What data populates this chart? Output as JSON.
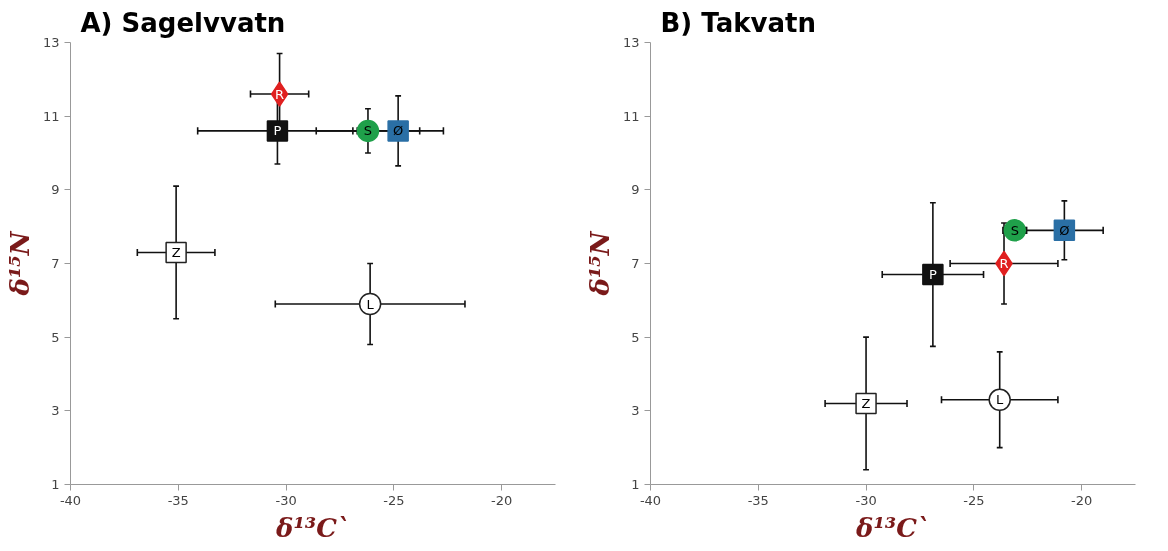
{
  "chart_data": [
    {
      "type": "scatter",
      "title": "A) Sagelvvatn",
      "xlabel": "δ¹³C`",
      "ylabel": "δ¹⁵N",
      "xlim": [
        -40,
        -17.5
      ],
      "ylim": [
        1,
        13
      ],
      "xticks": [
        -40,
        -35,
        -30,
        -25,
        -20
      ],
      "yticks": [
        1,
        3,
        5,
        7,
        9,
        11,
        13
      ],
      "grid": false,
      "legend": false,
      "series": [
        {
          "name": "Z",
          "color": "#ffffff",
          "marker": "square",
          "x": [
            -35.1
          ],
          "values": [
            7.3
          ],
          "xerrors": [
            1.8
          ],
          "errors": [
            1.8
          ]
        },
        {
          "name": "L",
          "color": "#ffffff",
          "marker": "circle",
          "x": [
            -26.1
          ],
          "values": [
            5.9
          ],
          "xerrors": [
            4.4
          ],
          "errors": [
            1.1
          ]
        },
        {
          "name": "P",
          "color": "#111111",
          "marker": "square",
          "x": [
            -30.4
          ],
          "values": [
            10.6
          ],
          "xerrors": [
            3.7
          ],
          "errors": [
            0.9
          ]
        },
        {
          "name": "S",
          "color": "#1fa04a",
          "marker": "circle",
          "x": [
            -26.2
          ],
          "values": [
            10.6
          ],
          "xerrors": [
            2.4
          ],
          "errors": [
            0.6
          ]
        },
        {
          "name": "Ø",
          "color": "#2a6fa5",
          "marker": "square",
          "x": [
            -24.8
          ],
          "values": [
            10.6
          ],
          "xerrors": [
            2.1
          ],
          "errors": [
            0.95
          ]
        },
        {
          "name": "R",
          "color": "#e02020",
          "marker": "diamond",
          "x": [
            -30.3
          ],
          "values": [
            11.6
          ],
          "xerrors": [
            1.35
          ],
          "errors": [
            1.1
          ]
        }
      ]
    },
    {
      "type": "scatter",
      "title": "B) Takvatn",
      "xlabel": "δ¹³C`",
      "ylabel": "δ¹⁵N",
      "xlim": [
        -40,
        -17.5
      ],
      "ylim": [
        1,
        13
      ],
      "xticks": [
        -40,
        -35,
        -30,
        -25,
        -20
      ],
      "yticks": [
        1,
        3,
        5,
        7,
        9,
        11,
        13
      ],
      "grid": false,
      "legend": false,
      "series": [
        {
          "name": "Z",
          "color": "#ffffff",
          "marker": "square",
          "x": [
            -30.0
          ],
          "values": [
            3.2
          ],
          "xerrors": [
            1.9
          ],
          "errors": [
            1.8
          ]
        },
        {
          "name": "L",
          "color": "#ffffff",
          "marker": "circle",
          "x": [
            -23.8
          ],
          "values": [
            3.3
          ],
          "xerrors": [
            2.7
          ],
          "errors": [
            1.3
          ]
        },
        {
          "name": "P",
          "color": "#111111",
          "marker": "square",
          "x": [
            -26.9
          ],
          "values": [
            6.7
          ],
          "xerrors": [
            2.35
          ],
          "errors": [
            1.95
          ]
        },
        {
          "name": "R",
          "color": "#e02020",
          "marker": "diamond",
          "x": [
            -23.6
          ],
          "values": [
            7.0
          ],
          "xerrors": [
            2.5
          ],
          "errors": [
            1.1
          ]
        },
        {
          "name": "S",
          "color": "#1fa04a",
          "marker": "circle",
          "x": [
            -23.1
          ],
          "values": [
            7.9
          ],
          "xerrors": [
            0.55
          ],
          "errors": [
            null
          ]
        },
        {
          "name": "Ø",
          "color": "#2a6fa5",
          "marker": "square",
          "x": [
            -20.8
          ],
          "values": [
            7.9
          ],
          "xerrors": [
            1.8
          ],
          "errors": [
            0.8
          ]
        }
      ]
    }
  ]
}
